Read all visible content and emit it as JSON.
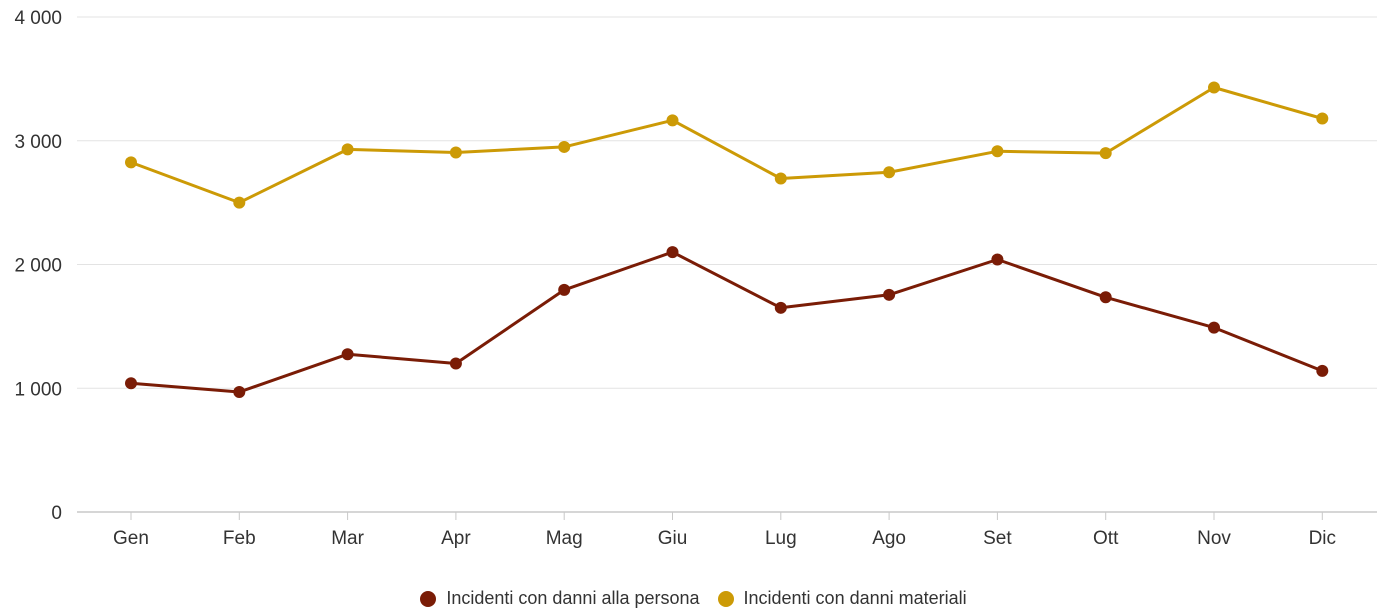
{
  "chart_data": {
    "type": "line",
    "categories": [
      "Gen",
      "Feb",
      "Mar",
      "Apr",
      "Mag",
      "Giu",
      "Lug",
      "Ago",
      "Set",
      "Ott",
      "Nov",
      "Dic"
    ],
    "series": [
      {
        "name": "Incidenti con danni alla persona",
        "color": "#7a1c06",
        "values": [
          1040,
          970,
          1275,
          1200,
          1795,
          2100,
          1650,
          1755,
          2040,
          1735,
          1490,
          1140
        ]
      },
      {
        "name": "Incidenti con danni materiali",
        "color": "#cc9a06",
        "values": [
          2825,
          2500,
          2930,
          2905,
          2950,
          3165,
          2695,
          2745,
          2915,
          2900,
          3430,
          3180
        ]
      }
    ],
    "ylim": [
      0,
      4000
    ],
    "yticks": [
      0,
      1000,
      2000,
      3000,
      4000
    ],
    "ytick_labels": [
      "0",
      "1 000",
      "2 000",
      "3 000",
      "4 000"
    ],
    "grid": true,
    "legend_position": "bottom"
  }
}
